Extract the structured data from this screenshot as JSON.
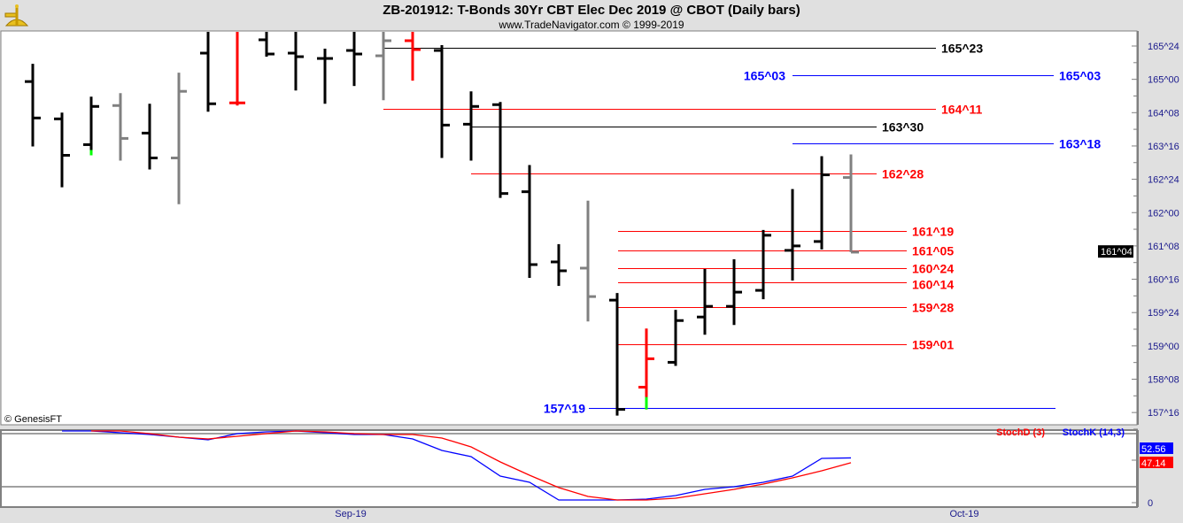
{
  "header": {
    "title": "ZB-201912:  T-Bonds 30Yr CBT Elec Dec 2019 @ CBOT  (Daily bars)",
    "subtitle": "www.TradeNavigator.com © 1999-2019",
    "copyright": "© GenesisFT"
  },
  "colors": {
    "up_bar": "#000000",
    "neutral_bar": "#808080",
    "down_bar": "#ff0000",
    "green_tick": "#00ff00",
    "stochD": "#ff0000",
    "stochK": "#0000ff"
  },
  "chart_data": [
    {
      "type": "ohlc",
      "title": "ZB-201912:  T-Bonds 30Yr CBT Elec Dec 2019 @ CBOT  (Daily bars)",
      "y_ticks": [
        "165^24",
        "165^00",
        "164^08",
        "163^16",
        "162^24",
        "162^00",
        "161^08",
        "160^16",
        "159^24",
        "159^00",
        "158^08",
        "157^16"
      ],
      "y_tick_values": [
        165.75,
        165.0,
        164.25,
        163.5,
        162.75,
        162.0,
        161.25,
        160.5,
        159.75,
        159.0,
        158.25,
        157.5
      ],
      "ylim": [
        157.2,
        166.1
      ],
      "x_ticks": [
        {
          "label": "Sep-19",
          "bar": 11
        },
        {
          "label": "Oct-19",
          "bar": 32
        }
      ],
      "last_price_label": "161^04",
      "last_price": 161.125,
      "bars": [
        {
          "o": 164.95,
          "h": 165.35,
          "l": 163.49,
          "c": 164.13,
          "color": "black"
        },
        {
          "o": 164.11,
          "h": 164.25,
          "l": 162.57,
          "c": 163.29,
          "color": "black"
        },
        {
          "o": 163.53,
          "h": 164.61,
          "l": 163.29,
          "c": 164.39,
          "color": "black",
          "low_tip": "green"
        },
        {
          "o": 164.41,
          "h": 164.69,
          "l": 163.17,
          "c": 163.67,
          "color": "gray"
        },
        {
          "o": 163.79,
          "h": 164.45,
          "l": 162.97,
          "c": 163.23,
          "color": "black"
        },
        {
          "o": 163.23,
          "h": 165.15,
          "l": 162.19,
          "c": 164.73,
          "color": "gray"
        },
        {
          "o": 165.59,
          "h": 166.09,
          "l": 164.27,
          "c": 164.45,
          "color": "black"
        },
        {
          "o": 164.47,
          "h": 166.09,
          "l": 164.41,
          "c": 164.47,
          "color": "red"
        },
        {
          "o": 165.89,
          "h": 166.09,
          "l": 165.51,
          "c": 165.57,
          "color": "black"
        },
        {
          "o": 165.59,
          "h": 166.09,
          "l": 164.75,
          "c": 165.51,
          "color": "black"
        },
        {
          "o": 165.47,
          "h": 165.69,
          "l": 164.45,
          "c": 165.47,
          "color": "black"
        },
        {
          "o": 165.65,
          "h": 166.09,
          "l": 164.85,
          "c": 165.57,
          "color": "black"
        },
        {
          "o": 165.53,
          "h": 166.09,
          "l": 164.53,
          "c": 165.87,
          "color": "gray"
        },
        {
          "o": 165.87,
          "h": 166.09,
          "l": 164.97,
          "c": 165.67,
          "color": "red"
        },
        {
          "o": 165.65,
          "h": 165.77,
          "l": 163.23,
          "c": 163.97,
          "color": "black"
        },
        {
          "o": 163.99,
          "h": 164.73,
          "l": 163.17,
          "c": 164.39,
          "color": "black"
        },
        {
          "o": 164.43,
          "h": 164.49,
          "l": 162.33,
          "c": 162.43,
          "color": "black"
        },
        {
          "o": 162.47,
          "h": 163.07,
          "l": 160.53,
          "c": 160.83,
          "color": "black"
        },
        {
          "o": 160.89,
          "h": 161.29,
          "l": 160.35,
          "c": 160.69,
          "color": "black"
        },
        {
          "o": 160.75,
          "h": 162.27,
          "l": 159.55,
          "c": 160.11,
          "color": "gray"
        },
        {
          "o": 160.03,
          "h": 160.19,
          "l": 157.43,
          "c": 157.57,
          "color": "black"
        },
        {
          "o": 158.07,
          "h": 159.39,
          "l": 157.57,
          "c": 158.71,
          "color": "red",
          "low_tip": "green"
        },
        {
          "o": 158.63,
          "h": 159.81,
          "l": 158.55,
          "c": 159.57,
          "color": "black"
        },
        {
          "o": 159.65,
          "h": 160.73,
          "l": 159.25,
          "c": 159.89,
          "color": "black"
        },
        {
          "o": 159.89,
          "h": 160.95,
          "l": 159.47,
          "c": 160.21,
          "color": "black"
        },
        {
          "o": 160.25,
          "h": 161.61,
          "l": 160.05,
          "c": 161.49,
          "color": "black"
        },
        {
          "o": 161.15,
          "h": 162.53,
          "l": 160.47,
          "c": 161.25,
          "color": "black"
        },
        {
          "o": 161.35,
          "h": 163.27,
          "l": 161.17,
          "c": 162.85,
          "color": "black"
        },
        {
          "o": 162.79,
          "h": 163.31,
          "l": 161.11,
          "c": 161.11,
          "color": "gray"
        }
      ],
      "levels": [
        {
          "label": "165^23",
          "value": 165.719,
          "color": "#000000"
        },
        {
          "label": "165^03",
          "value": 165.094,
          "color": "#0000ff",
          "label_left": "165^03"
        },
        {
          "label": "164^11",
          "value": 164.344,
          "color": "#ff0000"
        },
        {
          "label": "163^30",
          "value": 163.938,
          "color": "#000000"
        },
        {
          "label": "163^18",
          "value": 163.563,
          "color": "#0000ff"
        },
        {
          "label": "162^28",
          "value": 162.875,
          "color": "#ff0000"
        },
        {
          "label": "161^19",
          "value": 161.594,
          "color": "#ff0000"
        },
        {
          "label": "161^05",
          "value": 161.156,
          "color": "#ff0000"
        },
        {
          "label": "160^24",
          "value": 160.75,
          "color": "#ff0000"
        },
        {
          "label": "160^14",
          "value": 160.438,
          "color": "#ff0000"
        },
        {
          "label": "159^28",
          "value": 159.875,
          "color": "#ff0000"
        },
        {
          "label": "159^01",
          "value": 159.031,
          "color": "#ff0000"
        },
        {
          "label": "157^19",
          "value": 157.594,
          "color": "#0000ff",
          "label_left": "157^19"
        }
      ]
    },
    {
      "type": "line",
      "ylim": [
        0,
        100
      ],
      "y_ticks": [
        "0"
      ],
      "guide_lines": [
        20,
        80
      ],
      "series": [
        {
          "name": "StochD (3)",
          "color": "#ff0000",
          "start_bar": 2,
          "last_label": "47.14",
          "values": [
            86,
            83,
            80,
            76,
            74,
            77,
            80,
            83,
            82,
            80,
            79,
            79,
            75,
            65,
            48,
            33,
            19,
            9,
            5,
            5,
            7,
            12,
            17,
            23,
            30,
            38,
            47.14
          ]
        },
        {
          "name": "StochK (14,3)",
          "color": "#0000ff",
          "start_bar": 1,
          "last_label": "52.56",
          "values": [
            86,
            83,
            81,
            79,
            76,
            73,
            80,
            82,
            84,
            81,
            79,
            79,
            74,
            61,
            54,
            32,
            25,
            5,
            5,
            5,
            6,
            10,
            17,
            20,
            25,
            32,
            52,
            52.56
          ]
        }
      ]
    }
  ]
}
